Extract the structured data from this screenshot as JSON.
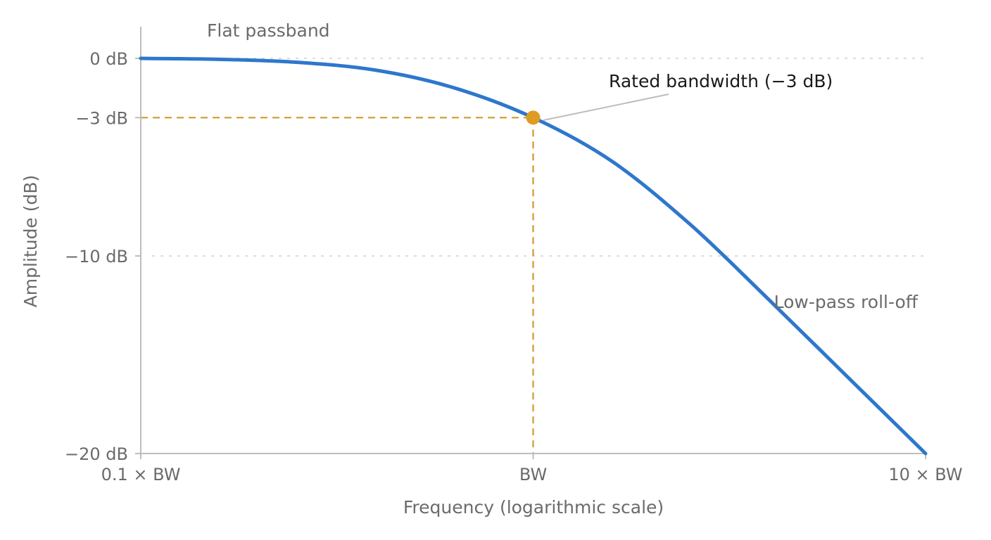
{
  "chart_data": {
    "type": "line",
    "title": "",
    "xlabel": "Frequency (logarithmic scale)",
    "ylabel": "Amplitude (dB)",
    "x_scale": "log",
    "x_ticks": [
      {
        "value": 0.1,
        "label": "0.1 × BW"
      },
      {
        "value": 1,
        "label": "BW"
      },
      {
        "value": 10,
        "label": "10 × BW"
      }
    ],
    "y_ticks": [
      {
        "value": 0,
        "label": "0 dB"
      },
      {
        "value": -3,
        "label": "−3 dB"
      },
      {
        "value": -10,
        "label": "−10 dB"
      },
      {
        "value": -20,
        "label": "−20 dB"
      }
    ],
    "xlim": [
      0.1,
      10
    ],
    "ylim": [
      -20,
      1.6
    ],
    "gridlines_y": [
      0,
      -10
    ],
    "series": [
      {
        "x": [
          0.1,
          0.158,
          0.251,
          0.398,
          0.631,
          1,
          1.585,
          2.512,
          3.981,
          6.31,
          10
        ],
        "y": [
          0,
          -0.05,
          -0.2,
          -0.6,
          -1.5,
          -3,
          -5.2,
          -8.4,
          -12.2,
          -16.1,
          -20
        ]
      }
    ],
    "marker": {
      "x": 1,
      "y": -3
    },
    "annotations": {
      "passband": "Flat passband",
      "bandwidth": "Rated bandwidth (−3 dB)",
      "rolloff": "Low-pass roll-off"
    },
    "colors": {
      "curve": "#2e77cc",
      "marker": "#e09b22",
      "guide": "#d19a2a",
      "axis": "#bdbdbd",
      "grid": "#dcdcdc",
      "text": "#6b6b6b"
    }
  }
}
